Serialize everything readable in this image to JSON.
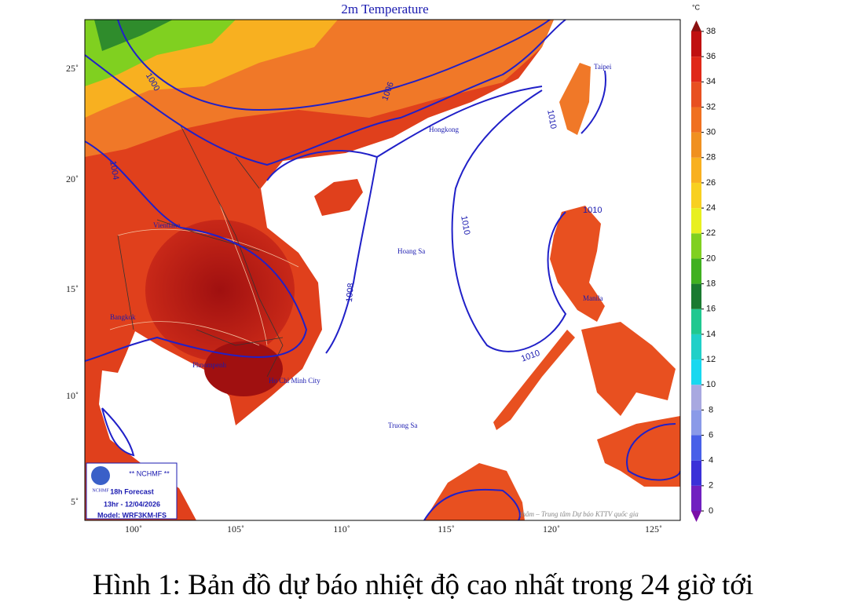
{
  "map": {
    "title": "2m Temperature",
    "lat_labels": [
      "25˚",
      "20˚",
      "15˚",
      "10˚",
      "5˚"
    ],
    "lon_labels": [
      "100˚",
      "105˚",
      "110˚",
      "115˚",
      "120˚",
      "125˚"
    ],
    "places": [
      "Taipei",
      "Hongkong",
      "Hoang Sa",
      "Manila",
      "Ho Chi Minh City",
      "Truong Sa",
      "Bangkok",
      "Phnompenh",
      "Vientiane"
    ],
    "contour_labels": [
      "1000",
      "1004",
      "1006",
      "1008",
      "1010",
      "1010",
      "1010",
      "1010"
    ],
    "info": {
      "logo": "NCHMF",
      "header": "** NCHMF **",
      "forecast": "18h Forecast",
      "time": "13hr - 12/04/2026",
      "model": "Model: WRF3KM-IFS"
    },
    "credit": "thâm – Trung tâm Dự báo KTTV quốc gia",
    "colorbar": {
      "unit": "°C",
      "ticks": [
        0,
        2,
        4,
        6,
        8,
        10,
        12,
        14,
        16,
        18,
        20,
        22,
        24,
        26,
        28,
        30,
        32,
        34,
        36,
        38
      ],
      "colors": [
        "#7a10a8",
        "#7020c0",
        "#3a30d8",
        "#4860e8",
        "#8a9ae8",
        "#a8a8e0",
        "#18d8f0",
        "#20d0c8",
        "#20c890",
        "#1a7a30",
        "#40b020",
        "#80d020",
        "#e8f020",
        "#f8d020",
        "#f8b020",
        "#f09020",
        "#f07020",
        "#e85020",
        "#e02818",
        "#c01010",
        "#8a1010"
      ]
    }
  },
  "caption": "Hình 1: Bản đồ dự báo nhiệt độ cao nhất trong 24 giờ tới"
}
